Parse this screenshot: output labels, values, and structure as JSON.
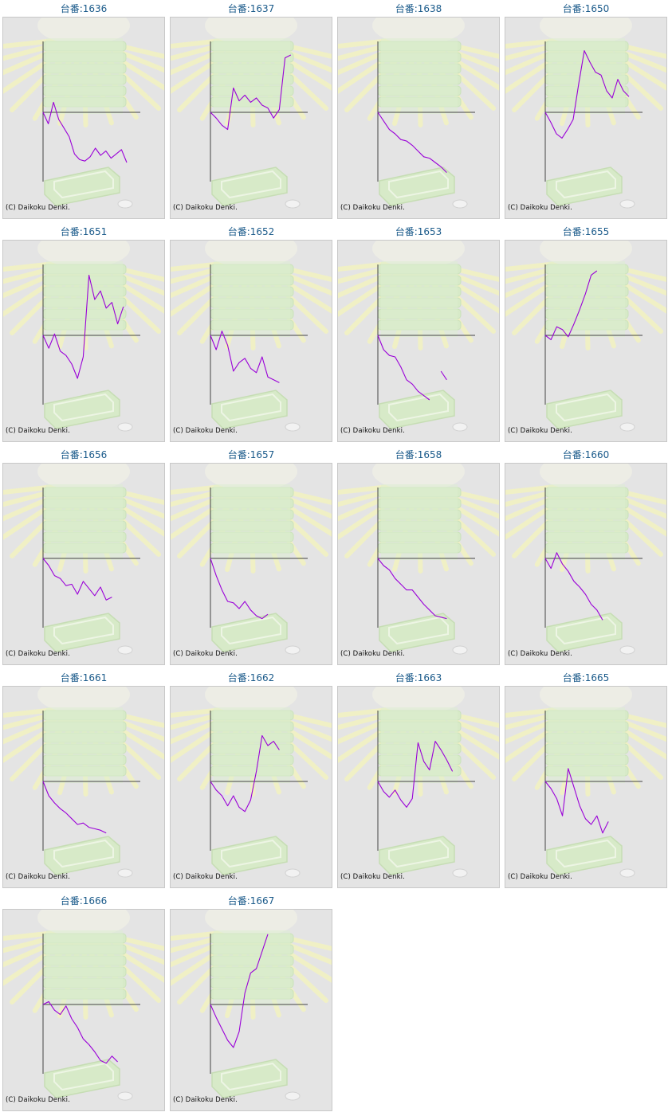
{
  "copyright": "(C) Daikoku Denki.",
  "colors": {
    "line": "#9a00d8",
    "axis": "#444444",
    "title": "#1a5a8a",
    "background": "#e4e4e4"
  },
  "chart_data": [
    {
      "type": "line",
      "title": "台番:1636",
      "y": [
        0,
        -16,
        14,
        -10,
        -22,
        -34,
        -58,
        -66,
        -68,
        -62,
        -50,
        -60,
        -54,
        -64,
        -58,
        -52,
        -70
      ]
    },
    {
      "type": "line",
      "title": "台番:1637",
      "y": [
        0,
        -8,
        -18,
        -24,
        34,
        16,
        24,
        14,
        20,
        10,
        6,
        -8,
        4,
        76,
        80
      ]
    },
    {
      "type": "line",
      "title": "台番:1638",
      "y": [
        0,
        -12,
        -24,
        -30,
        -38,
        -40,
        -46,
        -54,
        -62,
        -64,
        -70,
        -76,
        -84
      ]
    },
    {
      "type": "line",
      "title": "台番:1650",
      "y": [
        0,
        -14,
        -30,
        -36,
        -24,
        -10,
        40,
        86,
        70,
        56,
        52,
        30,
        20,
        46,
        30,
        22
      ]
    },
    {
      "type": "line",
      "title": "台番:1651",
      "y": [
        0,
        -18,
        2,
        -22,
        -28,
        -40,
        -60,
        -30,
        84,
        50,
        62,
        38,
        46,
        16,
        40
      ]
    },
    {
      "type": "line",
      "title": "台番:1652",
      "y": [
        0,
        -20,
        6,
        -14,
        -50,
        -38,
        -32,
        -46,
        -52,
        -30,
        -58,
        -62,
        -66
      ]
    },
    {
      "type": "line",
      "title": "台番:1653",
      "y": [
        0,
        -20,
        -28,
        -30,
        -44,
        -62,
        -68,
        -78,
        -84,
        -90,
        null,
        -50,
        -62
      ]
    },
    {
      "type": "line",
      "title": "台番:1655",
      "y": [
        0,
        -6,
        12,
        8,
        -2,
        16,
        36,
        58,
        84,
        90
      ]
    },
    {
      "type": "line",
      "title": "台番:1656",
      "y": [
        0,
        -10,
        -24,
        -28,
        -38,
        -36,
        -50,
        -32,
        -42,
        -52,
        -40,
        -58,
        -54
      ]
    },
    {
      "type": "line",
      "title": "台番:1657",
      "y": [
        0,
        -24,
        -44,
        -60,
        -62,
        -70,
        -60,
        -72,
        -80,
        -84,
        -78
      ]
    },
    {
      "type": "line",
      "title": "台番:1658",
      "y": [
        0,
        -10,
        -16,
        -28,
        -36,
        -44,
        -44,
        -54,
        -64,
        -72,
        -80,
        -82,
        -84
      ]
    },
    {
      "type": "line",
      "title": "台番:1660",
      "y": [
        0,
        -14,
        8,
        -8,
        -18,
        -32,
        -40,
        -50,
        -64,
        -72,
        -86
      ]
    },
    {
      "type": "line",
      "title": "台番:1661",
      "y": [
        0,
        -20,
        -30,
        -38,
        -44,
        -52,
        -60,
        -58,
        -64,
        -66,
        -68,
        -72
      ]
    },
    {
      "type": "line",
      "title": "台番:1662",
      "y": [
        0,
        -12,
        -20,
        -34,
        -20,
        -36,
        -42,
        -26,
        14,
        64,
        50,
        56,
        44
      ]
    },
    {
      "type": "line",
      "title": "台番:1663",
      "y": [
        0,
        -14,
        -22,
        -12,
        -26,
        -36,
        -24,
        54,
        28,
        16,
        56,
        44,
        30,
        14
      ]
    },
    {
      "type": "line",
      "title": "台番:1665",
      "y": [
        0,
        -10,
        -24,
        -48,
        18,
        -8,
        -34,
        -52,
        -60,
        -48,
        -72,
        -56
      ]
    },
    {
      "type": "line",
      "title": "台番:1666",
      "y": [
        0,
        4,
        -8,
        -14,
        -2,
        -20,
        -32,
        -48,
        -56,
        -66,
        -78,
        -82,
        -72,
        -80
      ]
    },
    {
      "type": "line",
      "title": "台番:1667",
      "y": [
        0,
        -18,
        -34,
        -50,
        -60,
        -38,
        16,
        44,
        50,
        74,
        98
      ]
    }
  ]
}
